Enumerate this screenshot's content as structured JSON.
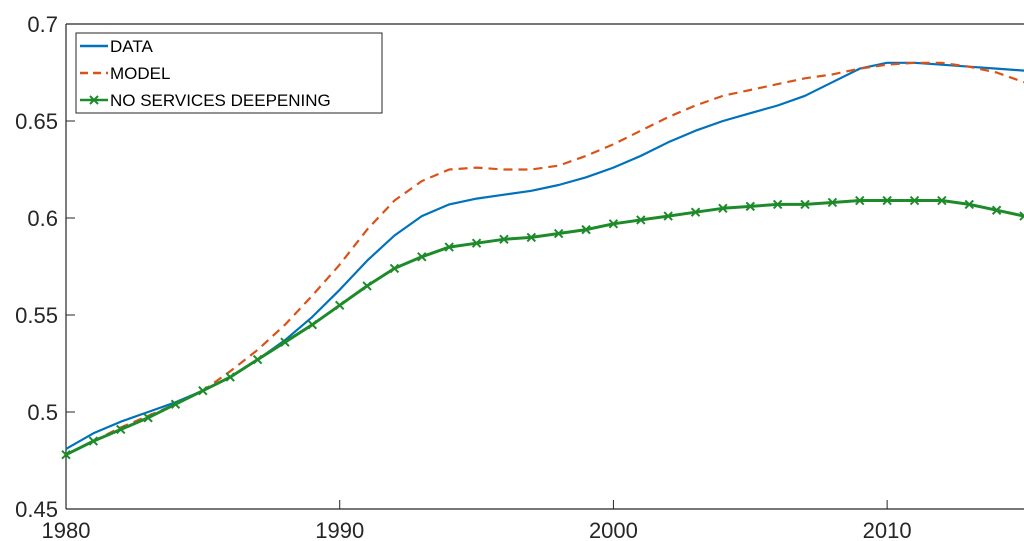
{
  "chart_data": {
    "type": "line",
    "xlim": [
      1980,
      2015
    ],
    "ylim": [
      0.45,
      0.7
    ],
    "xticks": [
      1980,
      1990,
      2000,
      2010
    ],
    "xtick_labels": [
      "1980",
      "1990",
      "2000",
      "2010"
    ],
    "yticks": [
      0.45,
      0.5,
      0.55,
      0.6,
      0.65,
      0.7
    ],
    "ytick_labels": [
      "0.45",
      "0.5",
      "0.55",
      "0.6",
      "0.65",
      "0.7"
    ],
    "grid": false,
    "legend_location": "top-left",
    "x": [
      1980,
      1981,
      1982,
      1983,
      1984,
      1985,
      1986,
      1987,
      1988,
      1989,
      1990,
      1991,
      1992,
      1993,
      1994,
      1995,
      1996,
      1997,
      1998,
      1999,
      2000,
      2001,
      2002,
      2003,
      2004,
      2005,
      2006,
      2007,
      2008,
      2009,
      2010,
      2011,
      2012,
      2013,
      2014,
      2015
    ],
    "series": [
      {
        "name": "DATA",
        "color": "#0072BD",
        "style": "solid",
        "marker": "none",
        "values": [
          0.481,
          0.489,
          0.495,
          0.5,
          0.505,
          0.511,
          0.518,
          0.527,
          0.537,
          0.549,
          0.563,
          0.578,
          0.591,
          0.601,
          0.607,
          0.61,
          0.612,
          0.614,
          0.617,
          0.621,
          0.626,
          0.632,
          0.639,
          0.645,
          0.65,
          0.654,
          0.658,
          0.663,
          0.67,
          0.677,
          0.68,
          0.68,
          0.679,
          0.678,
          0.677,
          0.676
        ]
      },
      {
        "name": "MODEL",
        "color": "#D95319",
        "style": "dashed",
        "marker": "none",
        "values": [
          0.478,
          0.485,
          0.492,
          0.498,
          0.504,
          0.511,
          0.521,
          0.532,
          0.545,
          0.56,
          0.576,
          0.594,
          0.609,
          0.619,
          0.625,
          0.626,
          0.625,
          0.625,
          0.627,
          0.632,
          0.638,
          0.645,
          0.652,
          0.658,
          0.663,
          0.666,
          0.669,
          0.672,
          0.674,
          0.677,
          0.679,
          0.68,
          0.68,
          0.678,
          0.675,
          0.67
        ]
      },
      {
        "name": "NO SERVICES DEEPENING",
        "color": "#1E8B2B",
        "style": "solid",
        "marker": "x",
        "values": [
          0.478,
          0.485,
          0.491,
          0.497,
          0.504,
          0.511,
          0.518,
          0.527,
          0.536,
          0.545,
          0.555,
          0.565,
          0.574,
          0.58,
          0.585,
          0.587,
          0.589,
          0.59,
          0.592,
          0.594,
          0.597,
          0.599,
          0.601,
          0.603,
          0.605,
          0.606,
          0.607,
          0.607,
          0.608,
          0.609,
          0.609,
          0.609,
          0.609,
          0.607,
          0.604,
          0.601
        ]
      }
    ]
  }
}
